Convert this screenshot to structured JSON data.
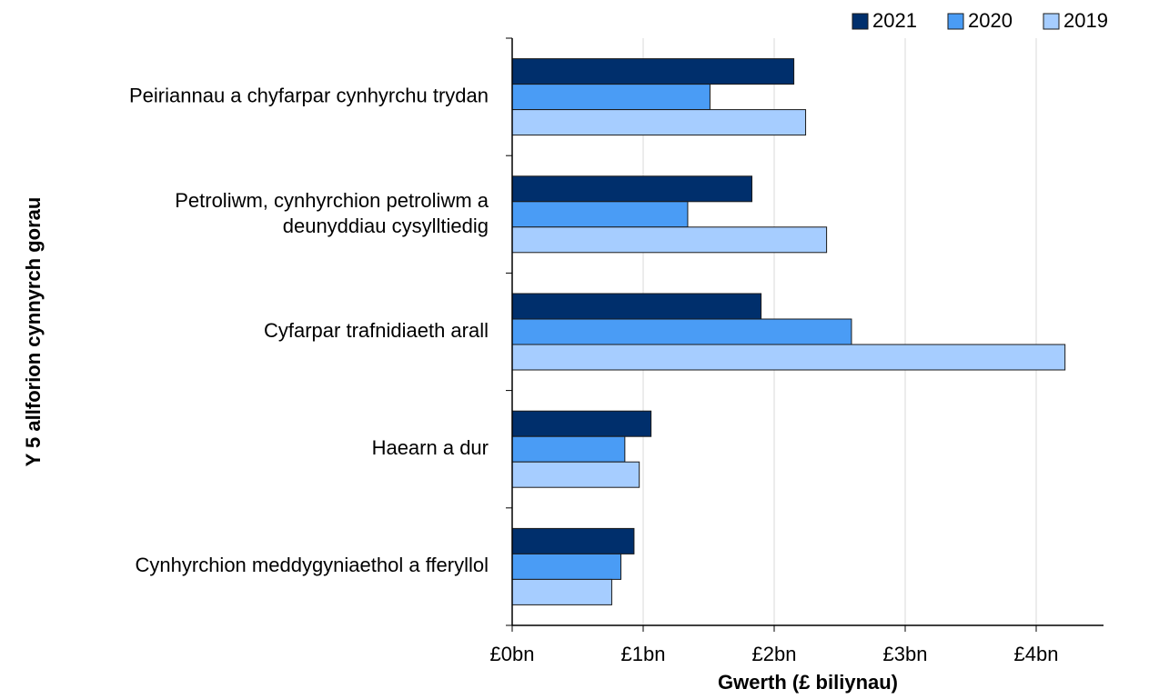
{
  "chart_data": {
    "type": "bar",
    "orientation": "horizontal",
    "categories": [
      "Peiriannau a chyfarpar cynhyrchu trydan",
      "Petroliwm, cynhyrchion petroliwm a\ndeunyddiau cysylltiedig",
      "Cyfarpar trafnidiaeth arall",
      "Haearn a dur",
      "Cynhyrchion meddygyniaethol a fferyllol"
    ],
    "series": [
      {
        "name": "2021",
        "color": "#002f6c",
        "values": [
          2.15,
          1.83,
          1.9,
          1.06,
          0.93
        ]
      },
      {
        "name": "2020",
        "color": "#4a9cf5",
        "values": [
          1.51,
          1.34,
          2.59,
          0.86,
          0.83
        ]
      },
      {
        "name": "2019",
        "color": "#a6cdff",
        "values": [
          2.24,
          2.4,
          4.22,
          0.97,
          0.76
        ]
      }
    ],
    "xlabel": "Gwerth (£ biliynau)",
    "ylabel": "Y 5 allforion cynnyrch gorau",
    "xlim": [
      0,
      4.5
    ],
    "xticks": [
      {
        "value": 0,
        "label": "£0bn"
      },
      {
        "value": 1,
        "label": "£1bn"
      },
      {
        "value": 2,
        "label": "£2bn"
      },
      {
        "value": 3,
        "label": "£3bn"
      },
      {
        "value": 4,
        "label": "£4bn"
      }
    ],
    "grid": true,
    "legend": "top-right"
  }
}
